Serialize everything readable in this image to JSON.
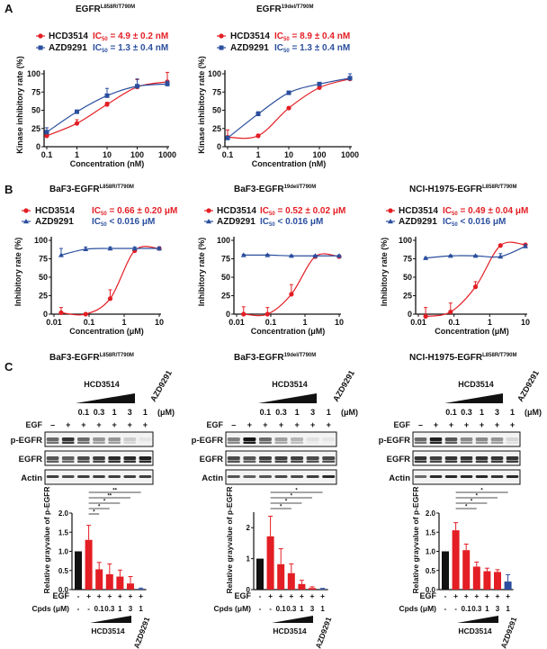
{
  "panels": {
    "A": "A",
    "B": "B",
    "C": "C"
  },
  "colors": {
    "hcd": "#e31e24",
    "azd": "#2b4f9e",
    "control": "#111111"
  },
  "chart_data": [
    {
      "type": "line",
      "panel": "A",
      "title_main": "EGFR",
      "title_sup": "L858R/T790M",
      "xlabel": "Concentration (nM)",
      "ylabel": "Kinase inhibitory rate (%)",
      "xscale": "log",
      "xlim": [
        0.1,
        1000
      ],
      "ylim": [
        0,
        100
      ],
      "xticks": [
        0.1,
        1,
        10,
        100,
        1000
      ],
      "xtick_labels": [
        "0.1",
        "1",
        "10",
        "100",
        "1000"
      ],
      "yticks": [
        0,
        25,
        50,
        75,
        100
      ],
      "ytick_labels": [
        "0",
        "25",
        "50",
        "75",
        "100"
      ],
      "legend": "top",
      "series": [
        {
          "name": "HCD3514",
          "ic_label": "IC",
          "ic_sub": "50",
          "ic_value": " = 4.9 ± 0.2 nM",
          "color": "#e31e24",
          "marker": "circle",
          "x": [
            0.1,
            1,
            10,
            100,
            1000
          ],
          "y": [
            15,
            32,
            58,
            82,
            89
          ],
          "err": [
            3,
            5,
            3,
            10,
            13
          ]
        },
        {
          "name": "AZD9291",
          "ic_label": "IC",
          "ic_sub": "50",
          "ic_value": " = 1.3 ± 0.4 nM",
          "color": "#2b4f9e",
          "marker": "square",
          "x": [
            0.1,
            1,
            10,
            100,
            1000
          ],
          "y": [
            20,
            48,
            70,
            83,
            86
          ],
          "err": [
            6,
            2,
            10,
            10,
            4
          ]
        }
      ]
    },
    {
      "type": "line",
      "panel": "A",
      "title_main": "EGFR",
      "title_sup": "19del/T790M",
      "xlabel": "Concentration (nM)",
      "ylabel": "Kinase inhibitory rate (%)",
      "xscale": "log",
      "xlim": [
        0.1,
        1000
      ],
      "ylim": [
        0,
        100
      ],
      "xticks": [
        0.1,
        1,
        10,
        100,
        1000
      ],
      "xtick_labels": [
        "0.1",
        "1",
        "10",
        "100",
        "1000"
      ],
      "yticks": [
        0,
        25,
        50,
        75,
        100
      ],
      "ytick_labels": [
        "0",
        "25",
        "50",
        "75",
        "100"
      ],
      "legend": "top",
      "series": [
        {
          "name": "HCD3514",
          "ic_label": "IC",
          "ic_sub": "50",
          "ic_value": " = 8.9 ± 0.4 nM",
          "color": "#e31e24",
          "marker": "circle",
          "x": [
            0.1,
            1,
            10,
            100,
            1000
          ],
          "y": [
            13,
            15,
            53,
            81,
            93
          ],
          "err": [
            10,
            2,
            2,
            3,
            3
          ]
        },
        {
          "name": "AZD9291",
          "ic_label": "IC",
          "ic_sub": "50",
          "ic_value": " = 1.3 ± 0.4 nM",
          "color": "#2b4f9e",
          "marker": "square",
          "x": [
            0.1,
            1,
            10,
            100,
            1000
          ],
          "y": [
            12,
            45,
            74,
            86,
            94
          ],
          "err": [
            2,
            3,
            2,
            2,
            6
          ]
        }
      ]
    },
    {
      "type": "line",
      "panel": "B",
      "title_main": "BaF3-EGFR",
      "title_sup": "L858R/T790M",
      "xlabel": "Concentration (μM)",
      "ylabel": "Inhibitory rate (%)",
      "xscale": "log",
      "xlim": [
        0.01,
        10
      ],
      "ylim": [
        0,
        100
      ],
      "xticks": [
        0.01,
        0.1,
        1,
        10
      ],
      "xtick_labels": [
        "0.01",
        "0.1",
        "1",
        "10"
      ],
      "yticks": [
        0,
        25,
        50,
        75,
        100
      ],
      "ytick_labels": [
        "0",
        "25",
        "50",
        "75",
        "100"
      ],
      "legend": "top",
      "series": [
        {
          "name": "HCD3514",
          "ic_label": "IC",
          "ic_sub": "50",
          "ic_value": " = 0.66 ± 0.20 μM",
          "color": "#e31e24",
          "marker": "circle",
          "x": [
            0.016,
            0.08,
            0.4,
            2,
            10
          ],
          "y": [
            2,
            0,
            21,
            86,
            89
          ],
          "err": [
            7,
            0,
            12,
            2,
            2
          ]
        },
        {
          "name": "AZD9291",
          "ic_label": "IC",
          "ic_sub": "50",
          "ic_value": " < 0.016 μM",
          "color": "#2b4f9e",
          "marker": "triangle",
          "x": [
            0.016,
            0.08,
            0.4,
            2,
            10
          ],
          "y": [
            80,
            88,
            89,
            89,
            89
          ],
          "err": [
            9,
            3,
            2,
            2,
            2
          ]
        }
      ]
    },
    {
      "type": "line",
      "panel": "B",
      "title_main": "BaF3-EGFR",
      "title_sup": "19del/T790M",
      "xlabel": "Concentration (μM)",
      "ylabel": "Inhibitory rate (%)",
      "xscale": "log",
      "xlim": [
        0.01,
        10
      ],
      "ylim": [
        0,
        100
      ],
      "xticks": [
        0.01,
        0.1,
        1,
        10
      ],
      "xtick_labels": [
        "0.01",
        "0.1",
        "1",
        "10"
      ],
      "yticks": [
        0,
        25,
        50,
        75,
        100
      ],
      "ytick_labels": [
        "0",
        "25",
        "50",
        "75",
        "100"
      ],
      "legend": "top",
      "series": [
        {
          "name": "HCD3514",
          "ic_label": "IC",
          "ic_sub": "50",
          "ic_value": " = 0.52 ± 0.02 μM",
          "color": "#e31e24",
          "marker": "circle",
          "x": [
            0.016,
            0.08,
            0.4,
            2,
            10
          ],
          "y": [
            0,
            0,
            27,
            78,
            78
          ],
          "err": [
            10,
            9,
            13,
            1,
            2
          ]
        },
        {
          "name": "AZD9291",
          "ic_label": "IC",
          "ic_sub": "50",
          "ic_value": " < 0.016 μM",
          "color": "#2b4f9e",
          "marker": "triangle",
          "x": [
            0.016,
            0.08,
            0.4,
            2,
            10
          ],
          "y": [
            80,
            80,
            79,
            79,
            79
          ],
          "err": [
            1,
            1,
            1,
            1,
            1
          ]
        }
      ]
    },
    {
      "type": "line",
      "panel": "B",
      "title_main": "NCI-H1975-EGFR",
      "title_sup": "L858R/T790M",
      "xlabel": "Concentration (μM)",
      "ylabel": "Inhibitory rate (%)",
      "xscale": "log",
      "xlim": [
        0.01,
        10
      ],
      "ylim": [
        0,
        100
      ],
      "xticks": [
        0.01,
        0.1,
        1,
        10
      ],
      "xtick_labels": [
        "0.01",
        "0.1",
        "1",
        "10"
      ],
      "yticks": [
        0,
        25,
        50,
        75,
        100
      ],
      "ytick_labels": [
        "0",
        "25",
        "50",
        "75",
        "100"
      ],
      "legend": "top",
      "series": [
        {
          "name": "HCD3514",
          "ic_label": "IC",
          "ic_sub": "50",
          "ic_value": " = 0.49 ± 0.04 μM",
          "color": "#e31e24",
          "marker": "circle",
          "x": [
            0.016,
            0.08,
            0.4,
            2,
            10
          ],
          "y": [
            -3,
            3,
            37,
            93,
            94
          ],
          "err": [
            12,
            12,
            7,
            1,
            1
          ]
        },
        {
          "name": "AZD9291",
          "ic_label": "IC",
          "ic_sub": "50",
          "ic_value": " < 0.016 μM",
          "color": "#2b4f9e",
          "marker": "triangle",
          "x": [
            0.016,
            0.08,
            0.4,
            2,
            10
          ],
          "y": [
            76,
            79,
            79,
            78,
            92
          ],
          "err": [
            1,
            1,
            1,
            4,
            2
          ]
        }
      ]
    },
    {
      "type": "bar",
      "panel": "C",
      "title_main": "BaF3-EGFR",
      "title_sup": "L858R/T790M",
      "ylabel": "Relative grayvalue of p-EGFR",
      "ylim": [
        0,
        2.0
      ],
      "yticks": [
        0,
        0.5,
        1,
        1.5,
        2
      ],
      "ytick_labels": [
        "0.0",
        "0.5",
        "1.0",
        "1.5",
        "2.0"
      ],
      "egf": [
        "-",
        "+",
        "+",
        "+",
        "+",
        "+",
        "+"
      ],
      "cpds": [
        "-",
        "-",
        "0.1",
        "0.3",
        "1",
        "3",
        "1"
      ],
      "values": [
        1.0,
        1.3,
        0.53,
        0.4,
        0.34,
        0.16,
        0.02
      ],
      "errors": [
        0,
        0.38,
        0.18,
        0.27,
        0.17,
        0.18,
        0.02
      ],
      "bar_colors": [
        "#111111",
        "#e31e24",
        "#e31e24",
        "#e31e24",
        "#e31e24",
        "#e31e24",
        "#2b4f9e"
      ],
      "significance": [
        {
          "to": 6,
          "label": "**"
        },
        {
          "to": 5,
          "label": "**"
        },
        {
          "to": 4,
          "label": "*"
        },
        {
          "to": 3,
          "label": "*"
        },
        {
          "to": 2,
          "label": "*"
        }
      ]
    },
    {
      "type": "bar",
      "panel": "C",
      "title_main": "BaF3-EGFR",
      "title_sup": "19del/T790M",
      "ylabel": "Relative grayvalue of p-EGFR",
      "ylim": [
        0,
        2.5
      ],
      "yticks": [
        0,
        1,
        2
      ],
      "ytick_labels": [
        "0",
        "1",
        "2"
      ],
      "egf": [
        "-",
        "+",
        "+",
        "+",
        "+",
        "+",
        "+"
      ],
      "cpds": [
        "-",
        "-",
        "0.1",
        "0.3",
        "1",
        "3",
        "1"
      ],
      "values": [
        1.0,
        1.72,
        0.82,
        0.53,
        0.18,
        0.05,
        0.02
      ],
      "errors": [
        0,
        0.65,
        0.5,
        0.3,
        0.12,
        0.04,
        0.02
      ],
      "bar_colors": [
        "#111111",
        "#e31e24",
        "#e31e24",
        "#e31e24",
        "#e31e24",
        "#e31e24",
        "#2b4f9e"
      ],
      "significance": [
        {
          "to": 6,
          "label": "*"
        },
        {
          "to": 5,
          "label": "*"
        },
        {
          "to": 4,
          "label": "*"
        },
        {
          "to": 3,
          "label": "*"
        }
      ]
    },
    {
      "type": "bar",
      "panel": "C",
      "title_main": "NCI-H1975-EGFR",
      "title_sup": "L858R/T790M",
      "ylabel": "Relative grayvalue of p-EGFR",
      "ylim": [
        0,
        2.0
      ],
      "yticks": [
        0,
        0.5,
        1,
        1.5,
        2
      ],
      "ytick_labels": [
        "0.0",
        "0.5",
        "1.0",
        "1.5",
        "2.0"
      ],
      "egf": [
        "-",
        "+",
        "+",
        "+",
        "+",
        "+",
        "+"
      ],
      "cpds": [
        "-",
        "-",
        "0.1",
        "0.3",
        "1",
        "3",
        "1"
      ],
      "values": [
        1.0,
        1.55,
        1.03,
        0.6,
        0.48,
        0.46,
        0.21
      ],
      "errors": [
        0,
        0.2,
        0.16,
        0.12,
        0.08,
        0.06,
        0.18
      ],
      "bar_colors": [
        "#111111",
        "#e31e24",
        "#e31e24",
        "#e31e24",
        "#e31e24",
        "#e31e24",
        "#2b4f9e"
      ],
      "significance": [
        {
          "to": 6,
          "label": "*"
        },
        {
          "to": 5,
          "label": "*"
        },
        {
          "to": 4,
          "label": "*"
        },
        {
          "to": 3,
          "label": "*"
        }
      ]
    }
  ],
  "western_blots": [
    {
      "hcd_label": "HCD3514",
      "azd_label": "AZD9291",
      "unit": "(μM)",
      "conc": [
        "0.1",
        "0.3",
        "1",
        "3",
        "1"
      ],
      "egf_label": "EGF",
      "egf": [
        "–",
        "+",
        "+",
        "+",
        "+",
        "+",
        "+"
      ],
      "cpds_label": "Cpds (μM)",
      "rows": [
        {
          "label": "p-EGFR",
          "intensity": [
            0.6,
            0.85,
            0.6,
            0.4,
            0.4,
            0.15,
            0.03
          ]
        },
        {
          "label": "EGFR",
          "intensity": [
            0.7,
            0.65,
            0.75,
            0.8,
            0.9,
            0.9,
            0.95
          ]
        },
        {
          "label": "Actin",
          "intensity": [
            0.8,
            0.75,
            0.8,
            0.8,
            0.8,
            0.8,
            0.8
          ]
        }
      ]
    },
    {
      "hcd_label": "HCD3514",
      "azd_label": "AZD9291",
      "unit": "(μM)",
      "conc": [
        "0.1",
        "0.3",
        "1",
        "3",
        "1"
      ],
      "egf_label": "EGF",
      "egf": [
        "–",
        "+",
        "+",
        "+",
        "+",
        "+",
        "+"
      ],
      "cpds_label": "Cpds (μM)",
      "rows": [
        {
          "label": "p-EGFR",
          "intensity": [
            0.5,
            1.0,
            0.6,
            0.35,
            0.25,
            0.05,
            0.03
          ]
        },
        {
          "label": "EGFR",
          "intensity": [
            0.75,
            0.7,
            0.8,
            0.8,
            0.8,
            0.75,
            0.75
          ]
        },
        {
          "label": "Actin",
          "intensity": [
            0.7,
            0.65,
            0.7,
            0.75,
            0.75,
            0.8,
            0.9
          ]
        }
      ]
    },
    {
      "hcd_label": "HCD3514",
      "azd_label": "AZD9291",
      "unit": "(μM)",
      "conc": [
        "0.1",
        "0.3",
        "1",
        "3",
        "1"
      ],
      "egf_label": "EGF",
      "egf": [
        "–",
        "+",
        "+",
        "+",
        "+",
        "+",
        "+"
      ],
      "cpds_label": "Cpds (μM)",
      "rows": [
        {
          "label": "p-EGFR",
          "intensity": [
            0.6,
            0.95,
            0.7,
            0.45,
            0.45,
            0.4,
            0.1
          ]
        },
        {
          "label": "EGFR",
          "intensity": [
            0.85,
            0.8,
            0.85,
            0.85,
            0.85,
            0.85,
            0.85
          ]
        },
        {
          "label": "Actin",
          "intensity": [
            0.6,
            0.9,
            0.9,
            0.9,
            0.9,
            0.85,
            0.9
          ]
        }
      ]
    }
  ]
}
